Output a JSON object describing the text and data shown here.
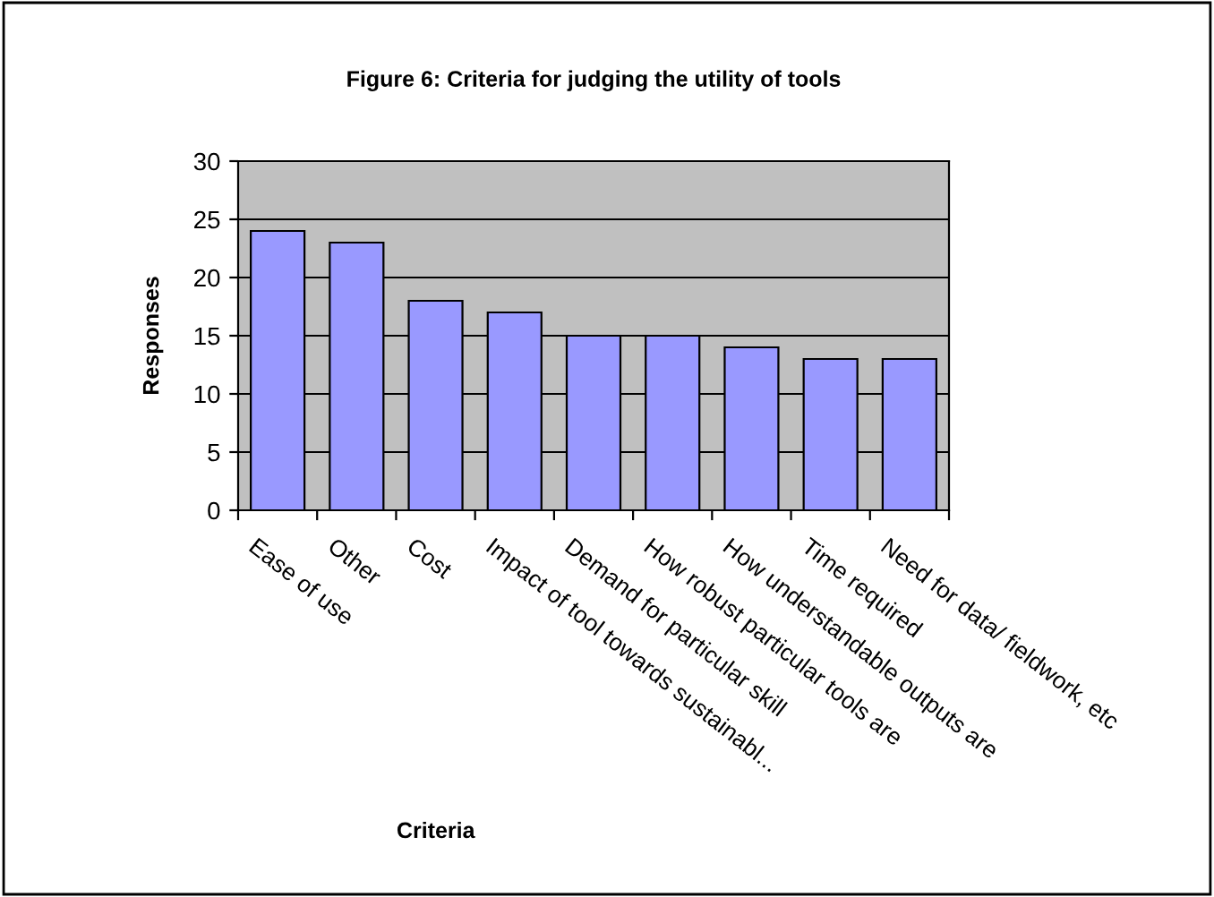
{
  "chart_data": {
    "type": "bar",
    "title": "Figure 6: Criteria for judging the utility of tools",
    "xlabel": "Criteria",
    "ylabel": "Responses",
    "categories": [
      "Ease of use",
      "Other",
      "Cost",
      "Impact of tool towards sustainabl...",
      "Demand for particular skill",
      "How robust particular tools are",
      "How understandable outputs are",
      "Time required",
      "Need for data/ fieldwork, etc"
    ],
    "values": [
      24,
      23,
      18,
      17,
      15,
      15,
      14,
      13,
      13
    ],
    "color": "#9999ff",
    "ylim": [
      0,
      30
    ],
    "yticks": [
      0,
      5,
      10,
      15,
      20,
      25,
      30
    ],
    "grid": "y",
    "legend": false
  }
}
